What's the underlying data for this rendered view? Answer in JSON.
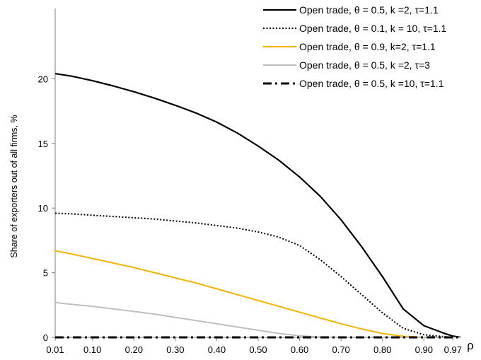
{
  "chart_data": {
    "type": "line",
    "ylabel": "Share of exporters out of all firms, %",
    "xlabel": "ρ",
    "ylim": [
      0,
      25
    ],
    "yticks": [
      0,
      5,
      10,
      15,
      20
    ],
    "x_tick_labels": [
      "0.01",
      "0.10",
      "0.20",
      "0.30",
      "0.40",
      "0.50",
      "0.60",
      "0.70",
      "0.80",
      "0.90",
      "0.97"
    ],
    "x": [
      0.01,
      0.05,
      0.1,
      0.15,
      0.2,
      0.25,
      0.3,
      0.35,
      0.4,
      0.45,
      0.5,
      0.55,
      0.6,
      0.65,
      0.7,
      0.75,
      0.8,
      0.85,
      0.9,
      0.95,
      0.97,
      0.99
    ],
    "grid": false,
    "legend_position": "top-right",
    "series": [
      {
        "name": "Open trade, θ = 0.5, k =2, τ=1.1",
        "color": "#000000",
        "style": "solid",
        "values": [
          20.4,
          20.2,
          19.85,
          19.45,
          19.0,
          18.5,
          17.95,
          17.35,
          16.65,
          15.8,
          14.8,
          13.7,
          12.4,
          10.9,
          9.1,
          7.0,
          4.7,
          2.2,
          0.9,
          0.3,
          0.1,
          0.0
        ]
      },
      {
        "name": "Open trade, θ = 0.1, k = 10, τ=1.1",
        "color": "#000000",
        "style": "dotted",
        "values": [
          9.6,
          9.55,
          9.45,
          9.35,
          9.25,
          9.15,
          9.0,
          8.85,
          8.65,
          8.45,
          8.15,
          7.75,
          7.1,
          6.0,
          4.7,
          3.3,
          1.9,
          0.7,
          0.2,
          0.05,
          0.0,
          0.0
        ]
      },
      {
        "name": "Open trade, θ = 0.9, k=2, τ=1.1",
        "color": "#f4b400",
        "style": "solid",
        "values": [
          6.7,
          6.45,
          6.1,
          5.75,
          5.4,
          5.0,
          4.6,
          4.2,
          3.75,
          3.3,
          2.85,
          2.4,
          1.95,
          1.5,
          1.05,
          0.65,
          0.3,
          0.08,
          0.0,
          0.0,
          0.0,
          0.0
        ]
      },
      {
        "name": "Open trade, θ = 0.5, k =2, τ=3",
        "color": "#bfbfbf",
        "style": "solid",
        "values": [
          2.7,
          2.55,
          2.4,
          2.2,
          2.0,
          1.8,
          1.55,
          1.3,
          1.05,
          0.8,
          0.55,
          0.3,
          0.12,
          0.03,
          0.0,
          0.0,
          0.0,
          0.0,
          0.0,
          0.0,
          0.0,
          0.0
        ]
      },
      {
        "name": "Open trade, θ = 0.5, k =10, τ=1.1",
        "color": "#000000",
        "style": "dashdot",
        "values": [
          0,
          0,
          0,
          0,
          0,
          0,
          0,
          0,
          0,
          0,
          0,
          0,
          0,
          0,
          0,
          0,
          0,
          0,
          0,
          0,
          0,
          0
        ]
      }
    ]
  }
}
